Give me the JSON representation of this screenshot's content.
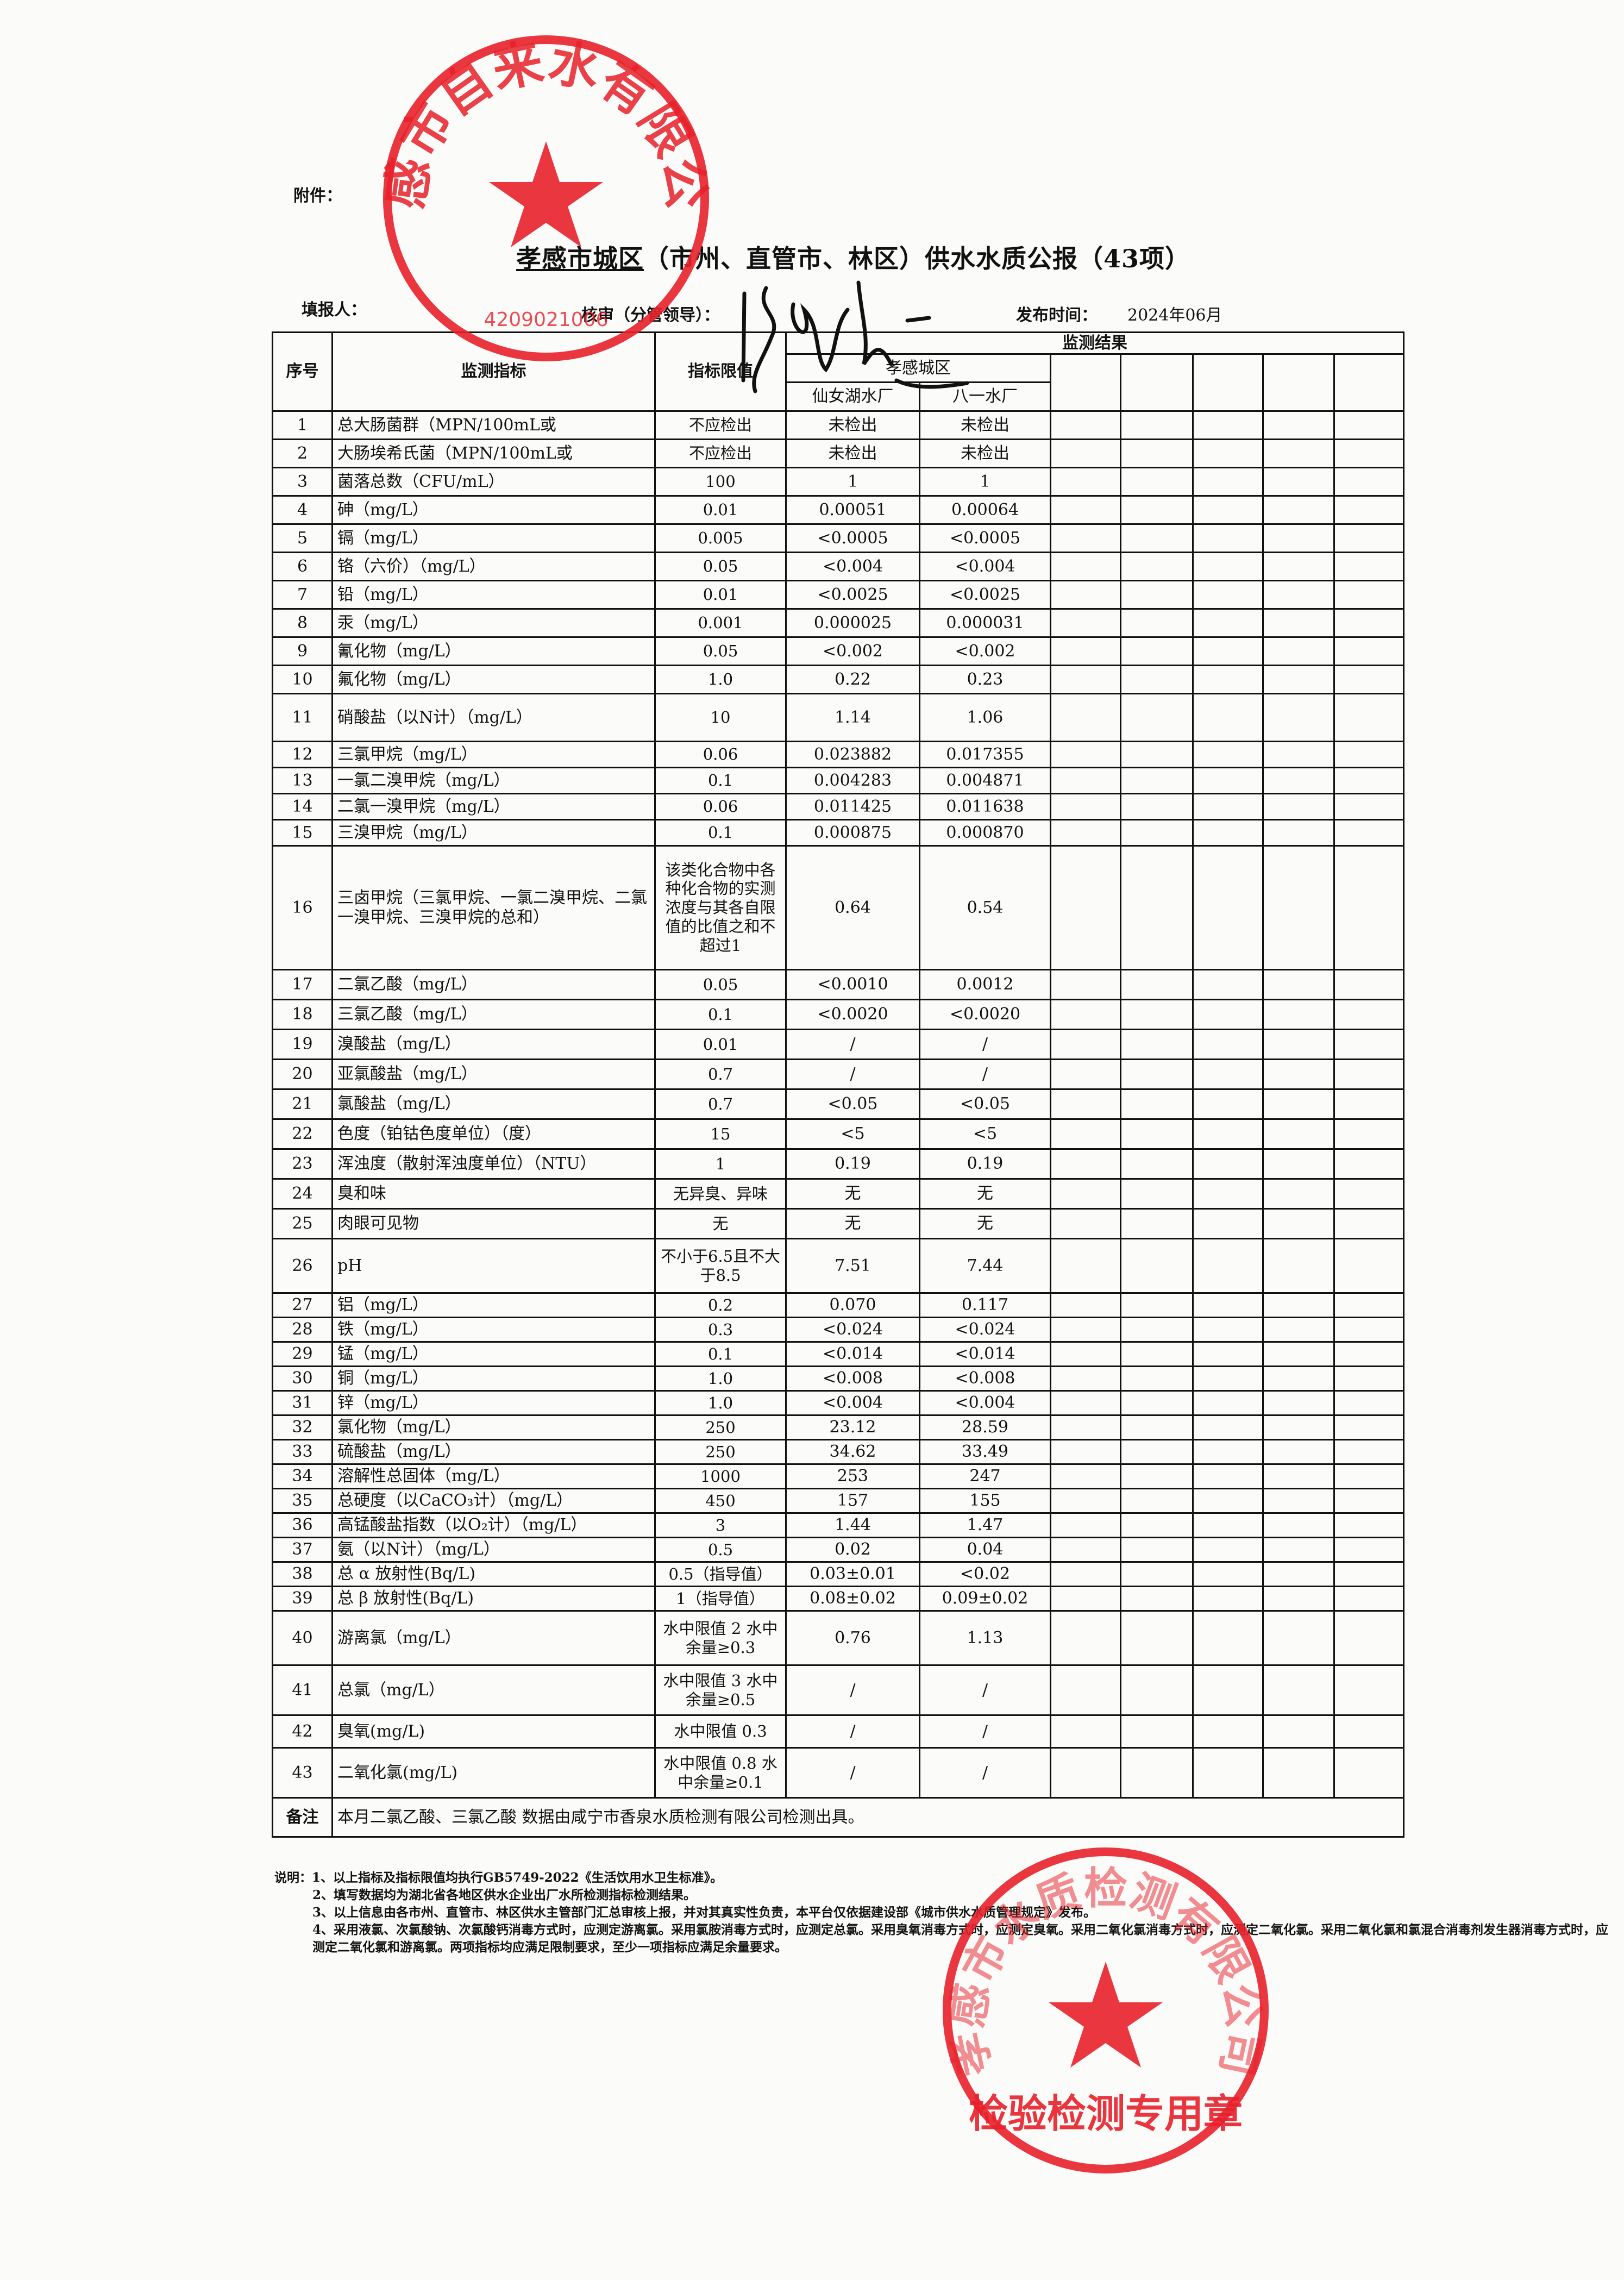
{
  "header": {
    "attachment_label": "附件：",
    "title_underlined": "孝感市城区",
    "title_rest": "（市州、直管市、林区）供水水质公报（43项）",
    "filler_label": "填报人：",
    "checker_label": "核审（分管领导）：",
    "publish_label": "发布时间：",
    "publish_date": "2024年06月"
  },
  "table": {
    "col_index": "序号",
    "col_indicator": "监测指标",
    "col_limit": "指标限值",
    "col_results": "监测结果",
    "region": "孝感城区",
    "plants": [
      "仙女湖水厂",
      "八一水厂"
    ],
    "rows": [
      {
        "no": "1",
        "name": "总大肠菌群（MPN/100mL或",
        "limit": "不应检出",
        "a": "未检出",
        "b": "未检出"
      },
      {
        "no": "2",
        "name": "大肠埃希氏菌（MPN/100mL或",
        "limit": "不应检出",
        "a": "未检出",
        "b": "未检出"
      },
      {
        "no": "3",
        "name": "菌落总数（CFU/mL）",
        "limit": "100",
        "a": "1",
        "b": "1"
      },
      {
        "no": "4",
        "name": "砷（mg/L）",
        "limit": "0.01",
        "a": "0.00051",
        "b": "0.00064"
      },
      {
        "no": "5",
        "name": "镉（mg/L）",
        "limit": "0.005",
        "a": "<0.0005",
        "b": "<0.0005"
      },
      {
        "no": "6",
        "name": "铬（六价）（mg/L）",
        "limit": "0.05",
        "a": "<0.004",
        "b": "<0.004"
      },
      {
        "no": "7",
        "name": "铅（mg/L）",
        "limit": "0.01",
        "a": "<0.0025",
        "b": "<0.0025"
      },
      {
        "no": "8",
        "name": "汞（mg/L）",
        "limit": "0.001",
        "a": "0.000025",
        "b": "0.000031"
      },
      {
        "no": "9",
        "name": "氰化物（mg/L）",
        "limit": "0.05",
        "a": "<0.002",
        "b": "<0.002"
      },
      {
        "no": "10",
        "name": "氟化物（mg/L）",
        "limit": "1.0",
        "a": "0.22",
        "b": "0.23"
      },
      {
        "no": "11",
        "name": "硝酸盐（以N计）（mg/L）",
        "limit": "10",
        "a": "1.14",
        "b": "1.06"
      },
      {
        "no": "12",
        "name": "三氯甲烷（mg/L）",
        "limit": "0.06",
        "a": "0.023882",
        "b": "0.017355"
      },
      {
        "no": "13",
        "name": "一氯二溴甲烷（mg/L）",
        "limit": "0.1",
        "a": "0.004283",
        "b": "0.004871"
      },
      {
        "no": "14",
        "name": "二氯一溴甲烷（mg/L）",
        "limit": "0.06",
        "a": "0.011425",
        "b": "0.011638"
      },
      {
        "no": "15",
        "name": "三溴甲烷（mg/L）",
        "limit": "0.1",
        "a": "0.000875",
        "b": "0.000870"
      },
      {
        "no": "16",
        "name": "三卤甲烷（三氯甲烷、一氯二溴甲烷、二氯一溴甲烷、三溴甲烷的总和）",
        "limit": "该类化合物中各种化合物的实测浓度与其各自限值的比值之和不超过1",
        "a": "0.64",
        "b": "0.54"
      },
      {
        "no": "17",
        "name": "二氯乙酸（mg/L）",
        "limit": "0.05",
        "a": "<0.0010",
        "b": "0.0012"
      },
      {
        "no": "18",
        "name": "三氯乙酸（mg/L）",
        "limit": "0.1",
        "a": "<0.0020",
        "b": "<0.0020"
      },
      {
        "no": "19",
        "name": "溴酸盐（mg/L）",
        "limit": "0.01",
        "a": "/",
        "b": "/"
      },
      {
        "no": "20",
        "name": "亚氯酸盐（mg/L）",
        "limit": "0.7",
        "a": "/",
        "b": "/"
      },
      {
        "no": "21",
        "name": "氯酸盐（mg/L）",
        "limit": "0.7",
        "a": "<0.05",
        "b": "<0.05"
      },
      {
        "no": "22",
        "name": "色度（铂钴色度单位）（度）",
        "limit": "15",
        "a": "<5",
        "b": "<5"
      },
      {
        "no": "23",
        "name": "浑浊度（散射浑浊度单位）（NTU）",
        "limit": "1",
        "a": "0.19",
        "b": "0.19"
      },
      {
        "no": "24",
        "name": "臭和味",
        "limit": "无异臭、异味",
        "a": "无",
        "b": "无"
      },
      {
        "no": "25",
        "name": "肉眼可见物",
        "limit": "无",
        "a": "无",
        "b": "无"
      },
      {
        "no": "26",
        "name": "pH",
        "limit": "不小于6.5且不大于8.5",
        "a": "7.51",
        "b": "7.44"
      },
      {
        "no": "27",
        "name": "铝（mg/L）",
        "limit": "0.2",
        "a": "0.070",
        "b": "0.117"
      },
      {
        "no": "28",
        "name": "铁（mg/L）",
        "limit": "0.3",
        "a": "<0.024",
        "b": "<0.024"
      },
      {
        "no": "29",
        "name": "锰（mg/L）",
        "limit": "0.1",
        "a": "<0.014",
        "b": "<0.014"
      },
      {
        "no": "30",
        "name": "铜（mg/L）",
        "limit": "1.0",
        "a": "<0.008",
        "b": "<0.008"
      },
      {
        "no": "31",
        "name": "锌（mg/L）",
        "limit": "1.0",
        "a": "<0.004",
        "b": "<0.004"
      },
      {
        "no": "32",
        "name": "氯化物（mg/L）",
        "limit": "250",
        "a": "23.12",
        "b": "28.59"
      },
      {
        "no": "33",
        "name": "硫酸盐（mg/L）",
        "limit": "250",
        "a": "34.62",
        "b": "33.49"
      },
      {
        "no": "34",
        "name": "溶解性总固体（mg/L）",
        "limit": "1000",
        "a": "253",
        "b": "247"
      },
      {
        "no": "35",
        "name": "总硬度（以CaCO₃计）（mg/L）",
        "limit": "450",
        "a": "157",
        "b": "155"
      },
      {
        "no": "36",
        "name": "高锰酸盐指数（以O₂计）（mg/L）",
        "limit": "3",
        "a": "1.44",
        "b": "1.47"
      },
      {
        "no": "37",
        "name": "氨（以N计）（mg/L）",
        "limit": "0.5",
        "a": "0.02",
        "b": "0.04"
      },
      {
        "no": "38",
        "name": "总 α 放射性(Bq/L)",
        "limit": "0.5（指导值）",
        "a": "0.03±0.01",
        "b": "<0.02"
      },
      {
        "no": "39",
        "name": "总 β 放射性(Bq/L)",
        "limit": "1（指导值）",
        "a": "0.08±0.02",
        "b": "0.09±0.02"
      },
      {
        "no": "40",
        "name": "游离氯（mg/L）",
        "limit": "水中限值 2 水中余量≥0.3",
        "a": "0.76",
        "b": "1.13"
      },
      {
        "no": "41",
        "name": "总氯（mg/L）",
        "limit": "水中限值 3 水中余量≥0.5",
        "a": "/",
        "b": "/"
      },
      {
        "no": "42",
        "name": "臭氧(mg/L)",
        "limit": "水中限值 0.3",
        "a": "/",
        "b": "/"
      },
      {
        "no": "43",
        "name": "二氧化氯(mg/L)",
        "limit": "水中限值 0.8 水中余量≥0.1",
        "a": "/",
        "b": "/"
      }
    ],
    "remark_label": "备注",
    "remark_text": "本月二氯乙酸、三氯乙酸 数据由咸宁市香泉水质检测有限公司检测出具。"
  },
  "notes": {
    "label": "说明：",
    "items": [
      "1、以上指标及指标限值均执行GB5749-2022《生活饮用水卫生标准》。",
      "2、填写数据均为湖北省各地区供水企业出厂水所检测指标检测结果。",
      "3、以上信息由各市州、直管市、林区供水主管部门汇总审核上报，并对其真实性负责，本平台仅依据建设部《城市供水水质管理规定》发布。",
      "4、采用液氯、次氯酸钠、次氯酸钙消毒方式时，应测定游离氯。采用氯胺消毒方式时，应测定总氯。采用臭氧消毒方式时，应测定臭氧。采用二氧化氯消毒方式时，应测定二氧化氯。采用二氧化氯和氯混合消毒剂发生器消毒方式时，应测定二氧化氯和游离氯。两项指标均应满足限制要求，至少一项指标应满足余量要求。"
    ]
  },
  "stamps": {
    "top": {
      "text": "孝感市自来水有限公司",
      "code": "4209021006",
      "color": "#e8202a"
    },
    "bottom": {
      "text": "检验检测专用章",
      "color": "#e8202a"
    }
  },
  "colors": {
    "ink": "#111111",
    "stamp": "#e8202a",
    "paper": "#fbfbf9"
  }
}
